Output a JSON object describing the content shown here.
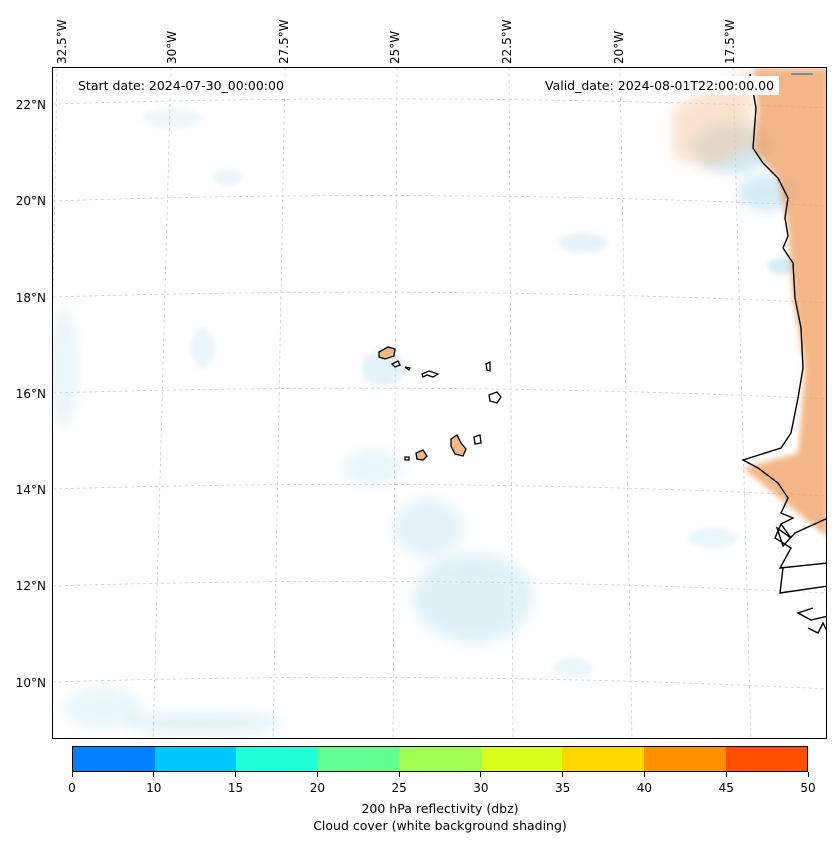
{
  "map": {
    "start_date": "Start date: 2024-07-30_00:00:00",
    "valid_date": "Valid_date: 2024-08-01T22:00:00.00",
    "longitude_labels": [
      "32.5°W",
      "30°W",
      "27.5°W",
      "25°W",
      "22.5°W",
      "20°W",
      "17.5°W"
    ],
    "latitude_labels": [
      "22°N",
      "20°N",
      "18°N",
      "16°N",
      "14°N",
      "12°N",
      "10°N"
    ],
    "features": [
      "Cabo Verde islands",
      "West African coastline"
    ]
  },
  "colorbar": {
    "ticks": [
      "0",
      "10",
      "15",
      "20",
      "25",
      "30",
      "35",
      "40",
      "45",
      "50"
    ],
    "colors": [
      "#0080ff",
      "#00c8ff",
      "#20ffd8",
      "#60ff90",
      "#a0ff50",
      "#d8ff20",
      "#ffd800",
      "#ff9000",
      "#ff5000"
    ],
    "label_line1": "200 hPa reflectivity (dbz)",
    "label_line2": "Cloud cover (white background shading)"
  },
  "colors": {
    "land_fill": "#f0a060",
    "cloud_blue": "#a8d8e8",
    "gridline": "#c8c8c8"
  }
}
